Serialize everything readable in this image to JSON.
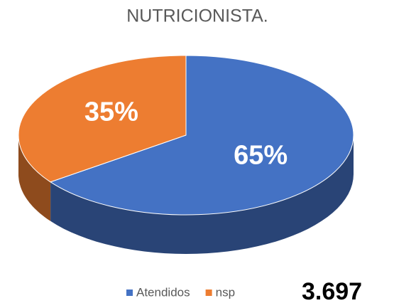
{
  "chart_data": {
    "type": "pie",
    "title": "NUTRICIONISTA.",
    "categories": [
      "Atendidos",
      "nsp"
    ],
    "values": [
      65,
      35
    ],
    "value_labels": [
      "65%",
      "35%"
    ],
    "colors": [
      "#4472c4",
      "#ed7d31"
    ],
    "legend": "bottom",
    "annotation": "3.697"
  }
}
